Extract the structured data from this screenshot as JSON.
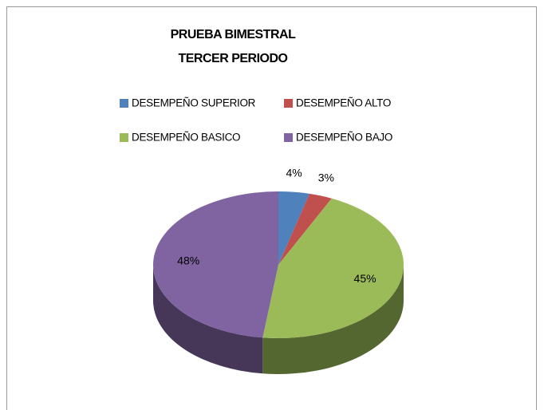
{
  "chart_data": {
    "type": "pie3d",
    "title": "PRUEBA BIMESTRAL",
    "subtitle": "TERCER PERIODO",
    "categories": [
      "DESEMPEÑO SUPERIOR",
      "DESEMPEÑO ALTO",
      "DESEMPEÑO BASICO",
      "DESEMPEÑO BAJO"
    ],
    "values": [
      4,
      3,
      45,
      48
    ],
    "value_labels": [
      "4%",
      "3%",
      "45%",
      "48%"
    ],
    "colors": [
      "#4f81bd",
      "#c0504d",
      "#9bbb59",
      "#8064a2"
    ],
    "legend": "top"
  }
}
